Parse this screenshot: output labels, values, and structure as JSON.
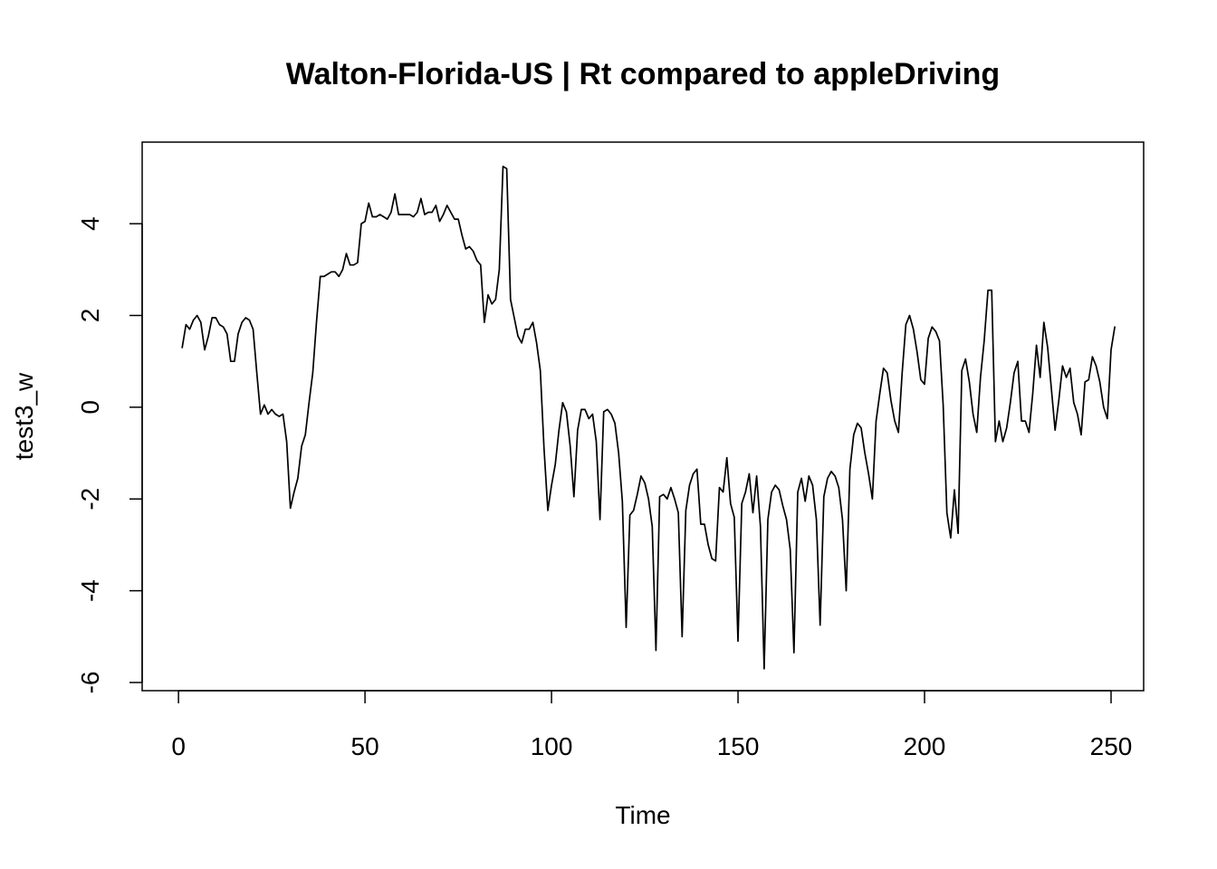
{
  "chart_data": {
    "type": "line",
    "title": "Walton-Florida-US | Rt compared to appleDriving",
    "xlabel": "Time",
    "ylabel": "test3_w",
    "xlim": [
      1,
      248
    ],
    "ylim": [
      -5.7,
      5.3
    ],
    "x_ticks": [
      0,
      50,
      100,
      150,
      200,
      250
    ],
    "y_ticks": [
      -6,
      -4,
      -2,
      0,
      2,
      4
    ],
    "grid": false,
    "legend": "none",
    "line_color": "#000000",
    "x_start": 1,
    "series": [
      {
        "values": [
          1.3,
          1.8,
          1.7,
          1.9,
          2.0,
          1.85,
          1.25,
          1.55,
          1.95,
          1.95,
          1.8,
          1.75,
          1.6,
          1.0,
          1.0,
          1.6,
          1.85,
          1.95,
          1.9,
          1.7,
          0.75,
          -0.15,
          0.05,
          -0.15,
          -0.05,
          -0.15,
          -0.2,
          -0.15,
          -0.75,
          -2.2,
          -1.85,
          -1.55,
          -0.85,
          -0.6,
          0.1,
          0.75,
          1.85,
          2.85,
          2.85,
          2.9,
          2.95,
          2.95,
          2.85,
          3.0,
          3.35,
          3.1,
          3.1,
          3.15,
          4.0,
          4.05,
          4.45,
          4.15,
          4.15,
          4.2,
          4.15,
          4.1,
          4.25,
          4.65,
          4.2,
          4.2,
          4.2,
          4.2,
          4.15,
          4.25,
          4.55,
          4.2,
          4.25,
          4.25,
          4.4,
          4.05,
          4.2,
          4.4,
          4.25,
          4.1,
          4.1,
          3.75,
          3.45,
          3.5,
          3.4,
          3.2,
          3.1,
          1.85,
          2.45,
          2.25,
          2.35,
          3.0,
          5.25,
          5.2,
          2.35,
          1.95,
          1.55,
          1.4,
          1.7,
          1.7,
          1.85,
          1.4,
          0.8,
          -0.9,
          -2.25,
          -1.7,
          -1.25,
          -0.5,
          0.1,
          -0.1,
          -0.85,
          -1.95,
          -0.5,
          -0.05,
          -0.05,
          -0.25,
          -0.15,
          -0.75,
          -2.45,
          -0.1,
          -0.05,
          -0.15,
          -0.35,
          -1.0,
          -2.05,
          -4.8,
          -2.35,
          -2.25,
          -1.9,
          -1.5,
          -1.65,
          -2.0,
          -2.6,
          -5.3,
          -1.95,
          -1.9,
          -2.0,
          -1.75,
          -2.0,
          -2.3,
          -5.0,
          -2.25,
          -1.7,
          -1.45,
          -1.35,
          -2.55,
          -2.55,
          -3.0,
          -3.3,
          -3.35,
          -1.75,
          -1.85,
          -1.1,
          -2.1,
          -2.4,
          -5.1,
          -2.1,
          -1.85,
          -1.45,
          -2.3,
          -1.5,
          -2.6,
          -5.7,
          -2.45,
          -1.85,
          -1.7,
          -1.8,
          -2.15,
          -2.45,
          -3.1,
          -5.35,
          -1.85,
          -1.55,
          -2.05,
          -1.5,
          -1.7,
          -2.45,
          -4.75,
          -1.95,
          -1.55,
          -1.4,
          -1.5,
          -1.75,
          -2.45,
          -4.0,
          -1.35,
          -0.6,
          -0.35,
          -0.45,
          -1.0,
          -1.45,
          -2.0,
          -0.3,
          0.3,
          0.85,
          0.75,
          0.15,
          -0.3,
          -0.55,
          0.75,
          1.8,
          2.0,
          1.7,
          1.2,
          0.6,
          0.5,
          1.5,
          1.75,
          1.65,
          1.45,
          0.05,
          -2.3,
          -2.85,
          -1.8,
          -2.75,
          0.8,
          1.05,
          0.55,
          -0.15,
          -0.55,
          0.65,
          1.45,
          2.55,
          2.55,
          -0.75,
          -0.3,
          -0.75,
          -0.45,
          0.1,
          0.75,
          1.0,
          -0.3,
          -0.3,
          -0.55,
          0.3,
          1.35,
          0.65,
          1.85,
          1.3,
          0.4,
          -0.5,
          0.15,
          0.9,
          0.65,
          0.85,
          0.1,
          -0.15,
          -0.6,
          0.55,
          0.6,
          1.1,
          0.9,
          0.55,
          0.0,
          -0.25,
          1.25,
          1.75
        ]
      }
    ]
  }
}
